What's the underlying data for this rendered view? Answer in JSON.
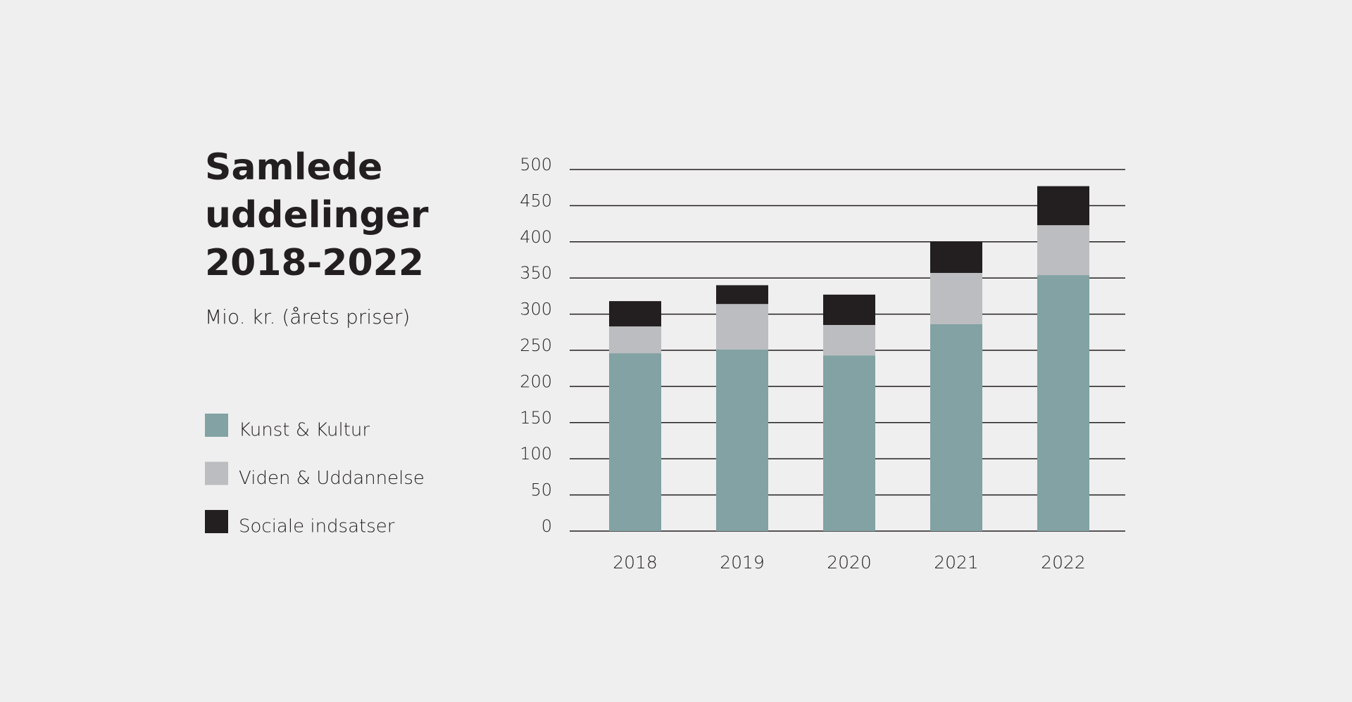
{
  "chart_data": {
    "type": "stacked_bar",
    "title": "Samlede uddelinger 2018-2022",
    "subtitle": "Mio. kr. (årets priser)",
    "categories": [
      "2018",
      "2019",
      "2020",
      "2021",
      "2022"
    ],
    "series": [
      {
        "name": "Kunst & Kultur",
        "color": "#82a2a3",
        "values": [
          246,
          251,
          243,
          286,
          354
        ]
      },
      {
        "name": "Viden & Uddannelse",
        "color": "#bcbdc0",
        "values": [
          37,
          63,
          42,
          71,
          69
        ]
      },
      {
        "name": "Sociale indsatser",
        "color": "#231f20",
        "values": [
          35,
          26,
          42,
          43,
          54
        ]
      }
    ],
    "ylim": [
      0,
      500
    ],
    "yticks": [
      0,
      50,
      100,
      150,
      200,
      250,
      300,
      350,
      400,
      450,
      500
    ],
    "grid": true
  }
}
